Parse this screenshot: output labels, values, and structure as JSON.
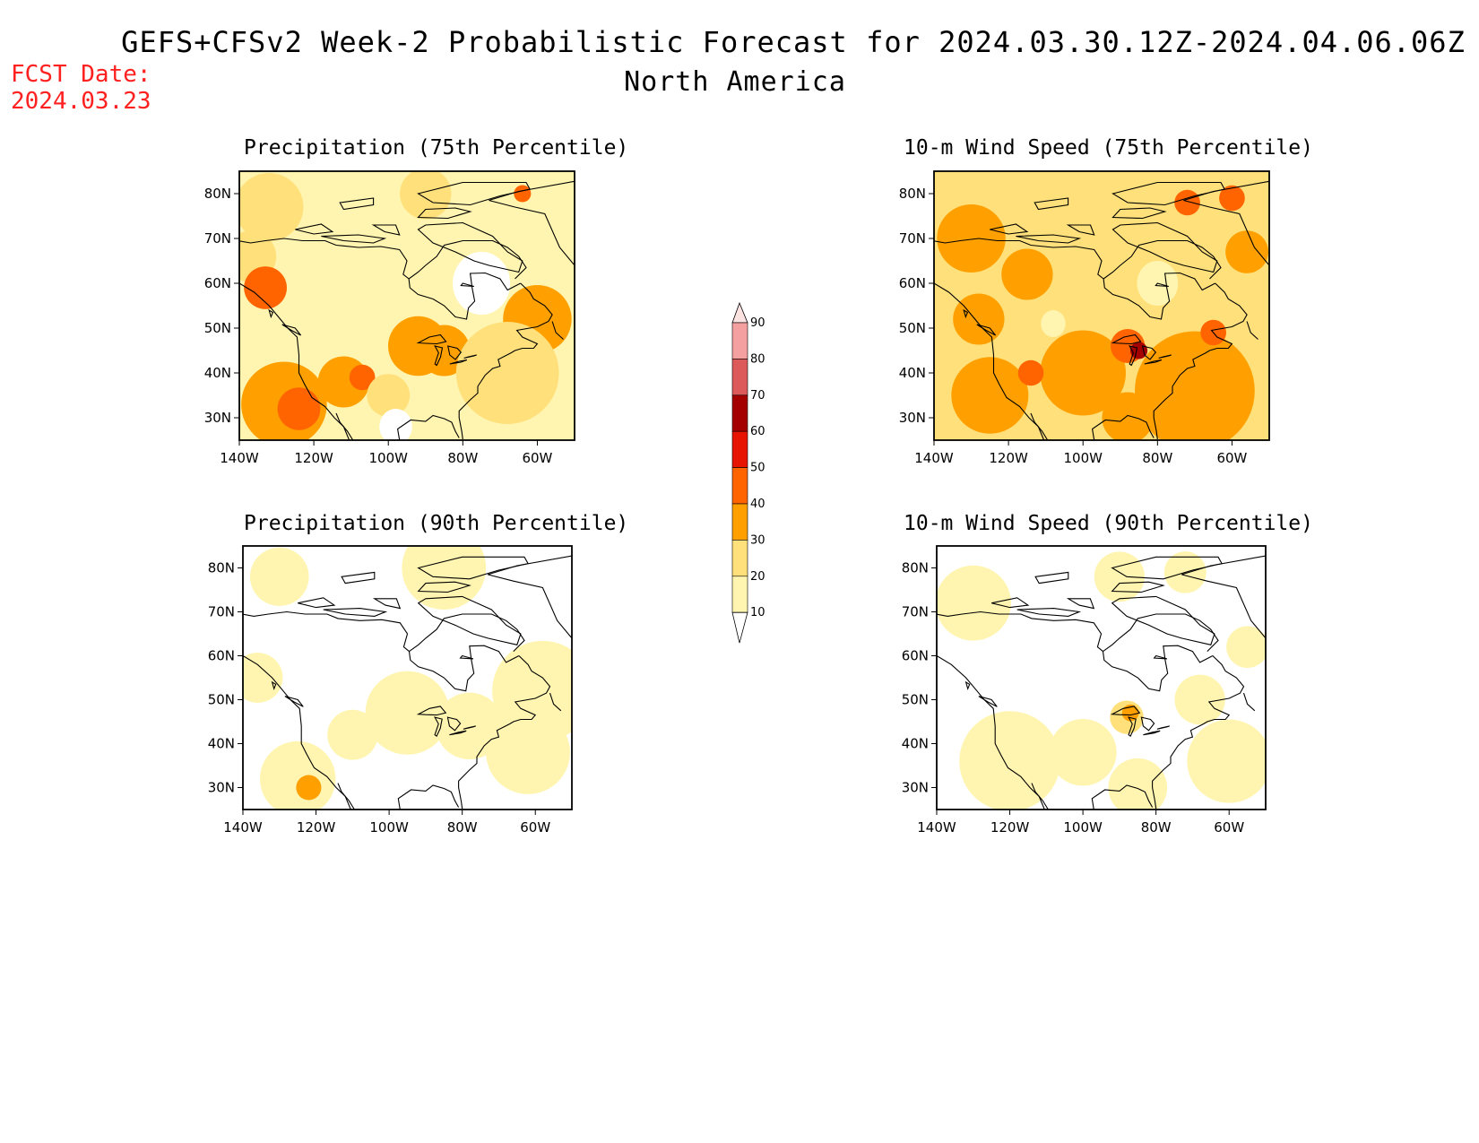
{
  "header": {
    "title": "GEFS+CFSv2 Week-2 Probabilistic Forecast for 2024.03.30.12Z-2024.04.06.06Z",
    "subtitle": "North America",
    "fcst_label": "FCST Date:",
    "fcst_date": "2024.03.23"
  },
  "colors": {
    "bins": [
      "#ffffff",
      "#fff5b0",
      "#ffe07a",
      "#ffa000",
      "#ff6400",
      "#e61400",
      "#a50000",
      "#dc5a5a",
      "#f5a0a0",
      "#fde2e2"
    ],
    "fcst_text": "#ff2020"
  },
  "axes": {
    "x_ticks": [
      "140W",
      "120W",
      "100W",
      "80W",
      "60W"
    ],
    "y_ticks": [
      "80N",
      "70N",
      "60N",
      "50N",
      "40N",
      "30N"
    ]
  },
  "colorbar": {
    "levels": [
      "10",
      "20",
      "30",
      "40",
      "50",
      "60",
      "70",
      "80",
      "90"
    ]
  },
  "panels": [
    {
      "title": "Precipitation (75th Percentile)",
      "base": 1,
      "blobs": [
        {
          "lon": -132,
          "lat": 77,
          "r": 8,
          "bin": 2
        },
        {
          "lon": -90,
          "lat": 80,
          "r": 6,
          "bin": 2
        },
        {
          "lon": -137,
          "lat": 66,
          "r": 6,
          "bin": 2
        },
        {
          "lon": -133,
          "lat": 59,
          "r": 5,
          "bin": 4
        },
        {
          "lon": -128,
          "lat": 33,
          "r": 10,
          "bin": 3
        },
        {
          "lon": -124,
          "lat": 32,
          "r": 5,
          "bin": 4
        },
        {
          "lon": -112,
          "lat": 38,
          "r": 6,
          "bin": 3
        },
        {
          "lon": -107,
          "lat": 39,
          "r": 3,
          "bin": 4
        },
        {
          "lon": -92,
          "lat": 46,
          "r": 7,
          "bin": 3
        },
        {
          "lon": -85,
          "lat": 45,
          "r": 6,
          "bin": 3
        },
        {
          "lon": -60,
          "lat": 52,
          "r": 8,
          "bin": 3
        },
        {
          "lon": -68,
          "lat": 40,
          "r": 12,
          "bin": 2
        },
        {
          "lon": -64,
          "lat": 80,
          "r": 2,
          "bin": 4
        },
        {
          "lon": -100,
          "lat": 35,
          "r": 5,
          "bin": 2
        }
      ],
      "cold": [
        {
          "lon": -75,
          "lat": 60,
          "r": 7
        },
        {
          "lon": -98,
          "lat": 28,
          "r": 4
        }
      ]
    },
    {
      "title": "10-m Wind Speed (75th Percentile)",
      "base": 2,
      "blobs": [
        {
          "lon": -130,
          "lat": 70,
          "r": 8,
          "bin": 3
        },
        {
          "lon": -115,
          "lat": 62,
          "r": 6,
          "bin": 3
        },
        {
          "lon": -128,
          "lat": 52,
          "r": 6,
          "bin": 3
        },
        {
          "lon": -125,
          "lat": 35,
          "r": 9,
          "bin": 3
        },
        {
          "lon": -100,
          "lat": 40,
          "r": 10,
          "bin": 3
        },
        {
          "lon": -70,
          "lat": 36,
          "r": 14,
          "bin": 3
        },
        {
          "lon": -88,
          "lat": 30,
          "r": 6,
          "bin": 3
        },
        {
          "lon": -88,
          "lat": 46,
          "r": 4,
          "bin": 4
        },
        {
          "lon": -85,
          "lat": 45,
          "r": 2,
          "bin": 6
        },
        {
          "lon": -65,
          "lat": 49,
          "r": 3,
          "bin": 4
        },
        {
          "lon": -72,
          "lat": 78,
          "r": 3,
          "bin": 4
        },
        {
          "lon": -60,
          "lat": 79,
          "r": 3,
          "bin": 4
        },
        {
          "lon": -56,
          "lat": 67,
          "r": 5,
          "bin": 3
        },
        {
          "lon": -114,
          "lat": 40,
          "r": 3,
          "bin": 4
        }
      ],
      "cold": [
        {
          "lon": -80,
          "lat": 60,
          "r": 5
        },
        {
          "lon": -108,
          "lat": 51,
          "r": 3
        }
      ]
    },
    {
      "title": "Precipitation (90th Percentile)",
      "base": 0,
      "blobs": [
        {
          "lon": -130,
          "lat": 78,
          "r": 7,
          "bin": 1
        },
        {
          "lon": -85,
          "lat": 80,
          "r": 10,
          "bin": 1
        },
        {
          "lon": -136,
          "lat": 55,
          "r": 6,
          "bin": 1
        },
        {
          "lon": -125,
          "lat": 32,
          "r": 9,
          "bin": 1
        },
        {
          "lon": -122,
          "lat": 30,
          "r": 3,
          "bin": 3
        },
        {
          "lon": -95,
          "lat": 47,
          "r": 10,
          "bin": 1
        },
        {
          "lon": -78,
          "lat": 44,
          "r": 8,
          "bin": 1
        },
        {
          "lon": -58,
          "lat": 52,
          "r": 12,
          "bin": 1
        },
        {
          "lon": -62,
          "lat": 38,
          "r": 10,
          "bin": 1
        },
        {
          "lon": -110,
          "lat": 42,
          "r": 6,
          "bin": 1
        }
      ],
      "cold": []
    },
    {
      "title": "10-m Wind Speed (90th Percentile)",
      "base": 0,
      "blobs": [
        {
          "lon": -130,
          "lat": 72,
          "r": 9,
          "bin": 1
        },
        {
          "lon": -120,
          "lat": 36,
          "r": 12,
          "bin": 1
        },
        {
          "lon": -100,
          "lat": 38,
          "r": 8,
          "bin": 1
        },
        {
          "lon": -88,
          "lat": 46,
          "r": 4,
          "bin": 2
        },
        {
          "lon": -87,
          "lat": 47,
          "r": 2,
          "bin": 3
        },
        {
          "lon": -60,
          "lat": 36,
          "r": 10,
          "bin": 1
        },
        {
          "lon": -85,
          "lat": 30,
          "r": 7,
          "bin": 1
        },
        {
          "lon": -68,
          "lat": 50,
          "r": 6,
          "bin": 1
        },
        {
          "lon": -72,
          "lat": 79,
          "r": 5,
          "bin": 1
        },
        {
          "lon": -90,
          "lat": 78,
          "r": 6,
          "bin": 1
        },
        {
          "lon": -55,
          "lat": 62,
          "r": 5,
          "bin": 1
        }
      ],
      "cold": []
    }
  ]
}
